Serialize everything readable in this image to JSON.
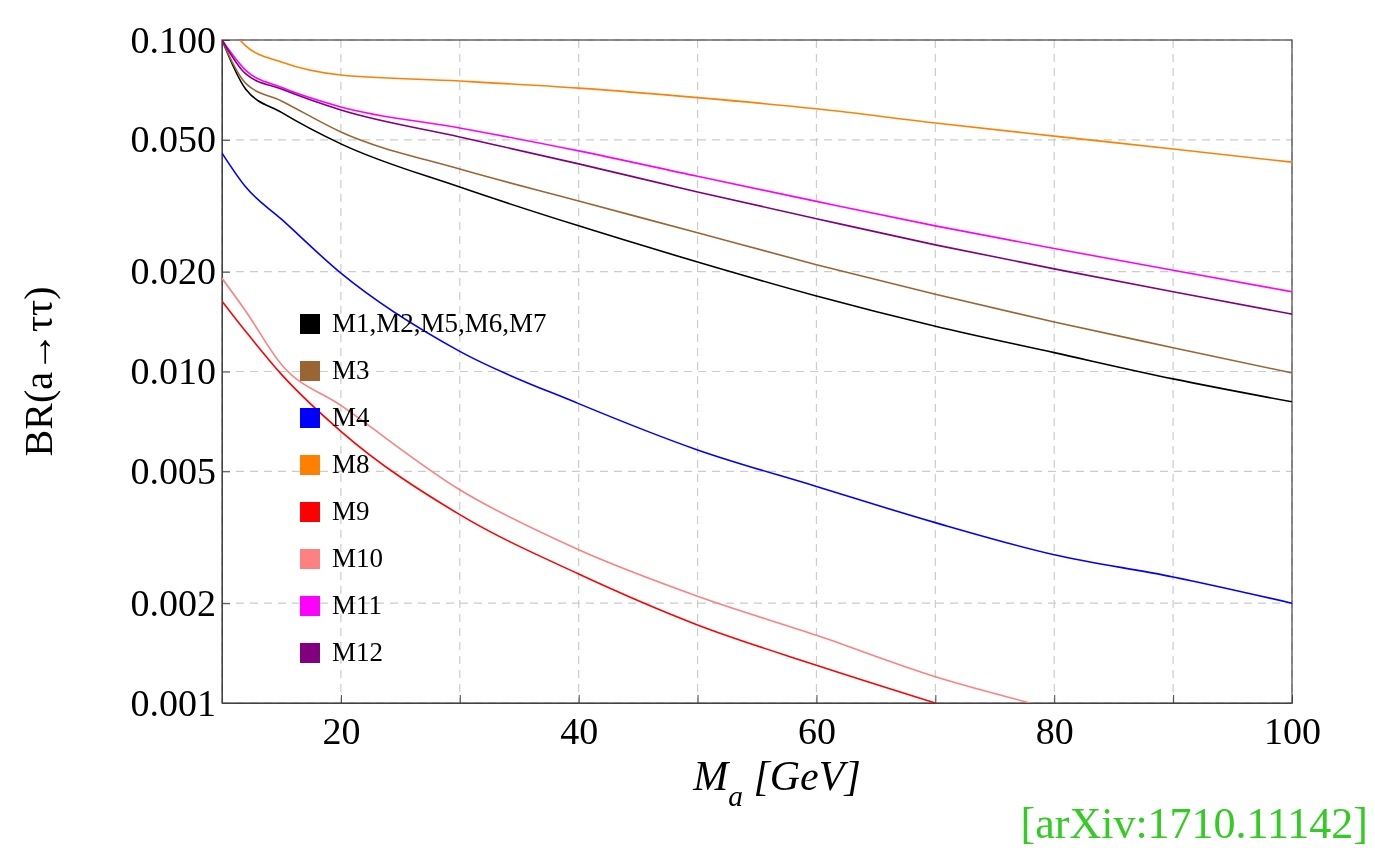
{
  "chart_data": {
    "type": "line",
    "xlabel": "M$_{a}$ [GeV]",
    "ylabel": "BR(a→ττ)",
    "log": "y",
    "grid": true,
    "legend": "left",
    "line_style": "solid",
    "marker": "none",
    "xlim": [
      10,
      100
    ],
    "ylim": [
      0.001,
      0.1
    ],
    "xticks": [
      {
        "value": 10,
        "label": null
      },
      20,
      {
        "value": 30,
        "label": null
      },
      40,
      {
        "value": 50,
        "label": null
      },
      60,
      {
        "value": 70,
        "label": null
      },
      80,
      {
        "value": 90,
        "label": null
      },
      100
    ],
    "yticks": [
      {
        "value": 0.001,
        "label": "0.001"
      },
      {
        "value": 0.002,
        "label": "0.002"
      },
      {
        "value": 0.005,
        "label": "0.005"
      },
      {
        "value": 0.01,
        "label": "0.010"
      },
      {
        "value": 0.02,
        "label": "0.020"
      },
      {
        "value": 0.05,
        "label": "0.050"
      },
      {
        "value": 0.1,
        "label": "0.100"
      }
    ],
    "annotations": [
      "[arXiv:1710.11142]"
    ],
    "series": [
      {
        "name": "M1,M2,M5,M6,M7",
        "color": "#000000",
        "x": [
          10,
          12,
          15,
          20,
          30,
          40,
          50,
          60,
          70,
          80,
          90,
          100
        ],
        "values": [
          0.1,
          0.071,
          0.0605,
          0.0486,
          0.036,
          0.0275,
          0.0214,
          0.0169,
          0.0137,
          0.0114,
          0.0095,
          0.0081
        ]
      },
      {
        "name": "M3",
        "color": "#996633",
        "x": [
          10,
          12,
          15,
          20,
          30,
          40,
          50,
          60,
          70,
          80,
          90,
          100
        ],
        "values": [
          0.1,
          0.074,
          0.0655,
          0.0528,
          0.0408,
          0.0327,
          0.0262,
          0.021,
          0.0171,
          0.0141,
          0.0118,
          0.0099
        ]
      },
      {
        "name": "M4",
        "color": "#0000ff",
        "x": [
          10,
          12,
          15,
          20,
          30,
          40,
          50,
          60,
          70,
          80,
          90,
          100
        ],
        "values": [
          0.0456,
          0.036,
          0.0288,
          0.0198,
          0.0115,
          0.008,
          0.0058,
          0.0045,
          0.0035,
          0.0028,
          0.0024,
          0.002
        ]
      },
      {
        "name": "M8",
        "color": "#ff8000",
        "x": [
          11.5,
          12,
          15,
          20,
          30,
          40,
          50,
          60,
          70,
          80,
          90,
          100
        ],
        "values": [
          0.1,
          0.096,
          0.0858,
          0.0784,
          0.0752,
          0.0716,
          0.067,
          0.062,
          0.0562,
          0.0513,
          0.0469,
          0.0428
        ]
      },
      {
        "name": "M9",
        "color": "#ff0000",
        "x": [
          10,
          12,
          15,
          20,
          30,
          40,
          50,
          60,
          70
        ],
        "values": [
          0.0163,
          0.0132,
          0.0098,
          0.0066,
          0.0037,
          0.00245,
          0.00172,
          0.0013,
          0.001
        ]
      },
      {
        "name": "M10",
        "color": "#ff8080",
        "x": [
          10,
          12,
          15,
          20,
          30,
          40,
          50,
          60,
          70,
          78
        ],
        "values": [
          0.0191,
          0.0152,
          0.0105,
          0.0079,
          0.0044,
          0.0029,
          0.0021,
          0.0016,
          0.0012,
          0.001
        ]
      },
      {
        "name": "M11",
        "color": "#ff00ff",
        "x": [
          10,
          12,
          15,
          20,
          30,
          40,
          50,
          60,
          70,
          80,
          90,
          100
        ],
        "values": [
          0.1,
          0.081,
          0.072,
          0.0628,
          0.0543,
          0.0463,
          0.0388,
          0.0326,
          0.0275,
          0.0235,
          0.0202,
          0.0174
        ]
      },
      {
        "name": "M12",
        "color": "#800080",
        "x": [
          10,
          12,
          15,
          20,
          30,
          40,
          50,
          60,
          70,
          80,
          90,
          100
        ],
        "values": [
          0.1,
          0.079,
          0.0711,
          0.0615,
          0.051,
          0.0423,
          0.0348,
          0.0289,
          0.0241,
          0.0204,
          0.0174,
          0.0149
        ]
      }
    ]
  }
}
